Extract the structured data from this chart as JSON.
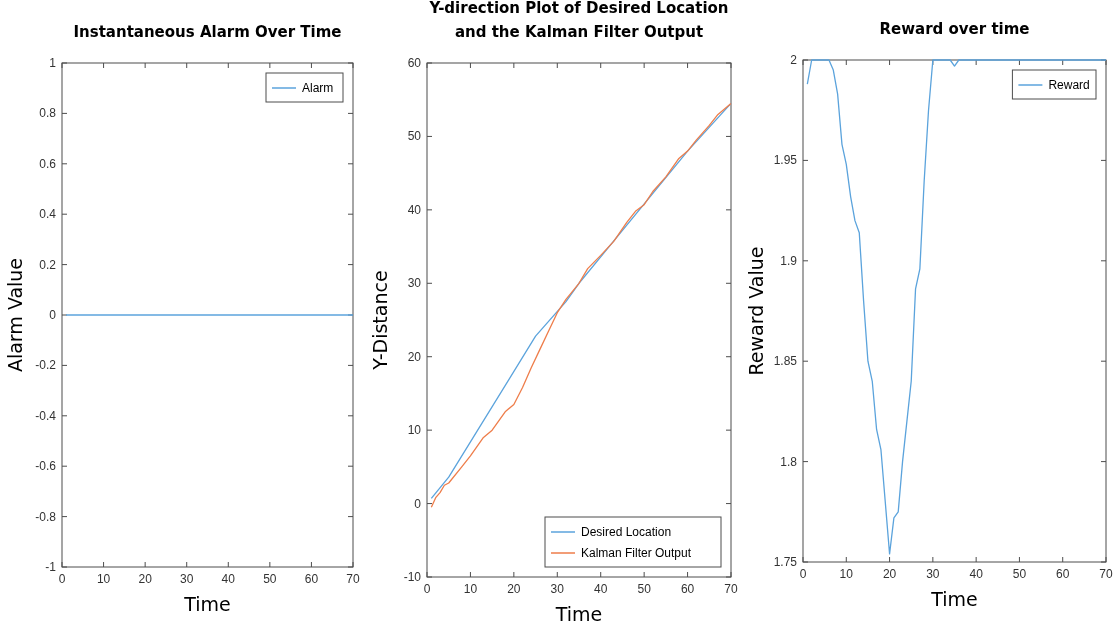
{
  "chart_data": [
    {
      "type": "line",
      "title": "Instantaneous Alarm Over Time",
      "xlabel": "Time",
      "ylabel": "Alarm Value",
      "xlim": [
        0,
        70
      ],
      "xticks": [
        0,
        10,
        20,
        30,
        40,
        50,
        60,
        70
      ],
      "ylim": [
        -1,
        1
      ],
      "yticks": [
        -1,
        -0.8,
        -0.6,
        -0.4,
        -0.2,
        0,
        0.2,
        0.4,
        0.6,
        0.8,
        1
      ],
      "legend": "top right",
      "series": [
        {
          "name": "Alarm",
          "color": "#5ba3dc",
          "x": [
            1,
            10,
            20,
            30,
            40,
            50,
            60,
            70
          ],
          "values": [
            0,
            0,
            0,
            0,
            0,
            0,
            0,
            0
          ]
        }
      ]
    },
    {
      "type": "line",
      "title": "Y-direction Plot of Desired Location\nand the Kalman Filter Output",
      "xlabel": "Time",
      "ylabel": "Y-Distance",
      "xlim": [
        0,
        70
      ],
      "xticks": [
        0,
        10,
        20,
        30,
        40,
        50,
        60,
        70
      ],
      "ylim": [
        -10,
        60
      ],
      "yticks": [
        -10,
        0,
        10,
        20,
        30,
        40,
        50,
        60
      ],
      "legend": "bottom right",
      "series": [
        {
          "name": "Desired Location",
          "color": "#5ba3dc",
          "x": [
            1,
            5,
            25,
            32,
            35,
            60,
            70
          ],
          "values": [
            0.7,
            3.6,
            22.8,
            27.5,
            30,
            48,
            54.5
          ]
        },
        {
          "name": "Kalman Filter Output",
          "color": "#ee7d4a",
          "x": [
            1,
            2,
            3,
            4,
            5,
            8,
            10,
            13,
            15,
            18,
            20,
            22,
            24,
            26,
            28,
            30,
            32,
            35,
            37,
            40,
            43,
            46,
            48,
            50,
            52,
            55,
            58,
            60,
            62,
            65,
            67,
            70
          ],
          "values": [
            -0.5,
            0.8,
            1.5,
            2.5,
            2.8,
            5,
            6.5,
            9,
            10,
            12.5,
            13.5,
            15.8,
            18.5,
            21,
            23.5,
            26,
            27.8,
            30,
            32,
            33.8,
            35.7,
            38.3,
            39.8,
            40.7,
            42.5,
            44.5,
            47,
            48,
            49.5,
            51.5,
            53,
            54.5
          ]
        }
      ]
    },
    {
      "type": "line",
      "title": "Reward over time",
      "xlabel": "Time",
      "ylabel": "Reward Value",
      "xlim": [
        0,
        70
      ],
      "xticks": [
        0,
        10,
        20,
        30,
        40,
        50,
        60,
        70
      ],
      "ylim": [
        1.75,
        2
      ],
      "yticks": [
        1.75,
        1.8,
        1.85,
        1.9,
        1.95,
        2
      ],
      "legend": "top right",
      "series": [
        {
          "name": "Reward",
          "color": "#5ba3dc",
          "x": [
            1,
            2,
            6,
            7,
            8,
            9,
            10,
            11,
            12,
            13,
            14,
            15,
            16,
            17,
            18,
            19,
            20,
            21,
            22,
            23,
            24,
            25,
            26,
            27,
            28,
            29,
            30,
            34,
            35,
            36,
            70
          ],
          "values": [
            1.988,
            2,
            2,
            1.995,
            1.983,
            1.958,
            1.948,
            1.932,
            1.92,
            1.914,
            1.88,
            1.85,
            1.84,
            1.816,
            1.806,
            1.78,
            1.754,
            1.772,
            1.775,
            1.8,
            1.82,
            1.84,
            1.886,
            1.896,
            1.94,
            1.975,
            2,
            2,
            1.997,
            2,
            2
          ]
        }
      ]
    }
  ]
}
